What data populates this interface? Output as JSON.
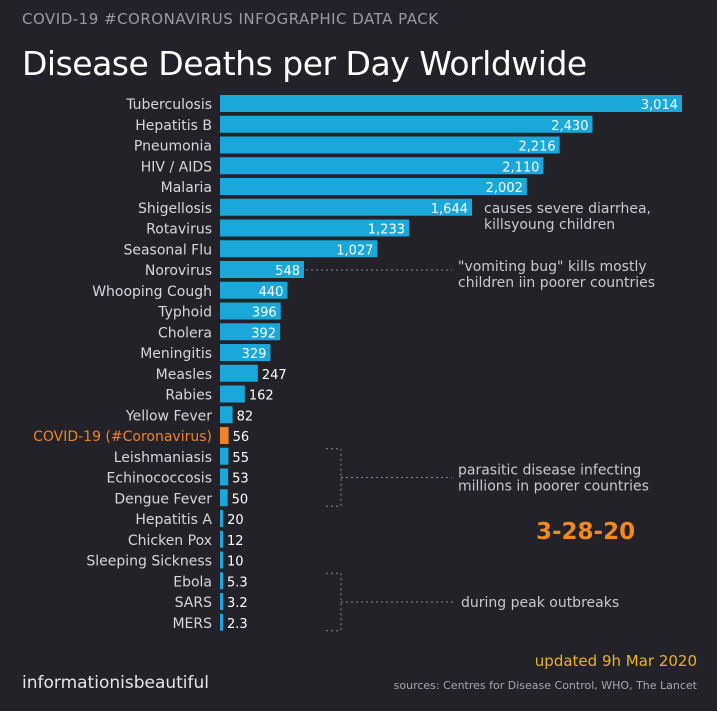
{
  "header": {
    "tag": "COVID-19 #CORONAVIRUS INFOGRAPHIC DATA PACK",
    "title": "Disease Deaths per Day Worldwide"
  },
  "stamp": "3-28-20",
  "footer": {
    "brand": "informationisbeautiful",
    "updated": "updated 9h Mar 2020",
    "sources": "sources: Centres for Disease Control, WHO, The Lancet"
  },
  "colors": {
    "bar": "#1aa7d9",
    "highlight": "#f0832a",
    "background": "#232229"
  },
  "chart_data": {
    "type": "bar",
    "orientation": "horizontal",
    "title": "Disease Deaths per Day Worldwide",
    "categories": [
      "Tuberculosis",
      "Hepatitis B",
      "Pneumonia",
      "HIV / AIDS",
      "Malaria",
      "Shigellosis",
      "Rotavirus",
      "Seasonal Flu",
      "Norovirus",
      "Whooping Cough",
      "Typhoid",
      "Cholera",
      "Meningitis",
      "Measles",
      "Rabies",
      "Yellow Fever",
      "COVID-19 (#Coronavirus)",
      "Leishmaniasis",
      "Echinococcosis",
      "Dengue Fever",
      "Hepatitis A",
      "Chicken Pox",
      "Sleeping Sickness",
      "Ebola",
      "SARS",
      "MERS"
    ],
    "values": [
      3014,
      2430,
      2216,
      2110,
      2002,
      1644,
      1233,
      1027,
      548,
      440,
      396,
      392,
      329,
      247,
      162,
      82,
      56,
      55,
      53,
      50,
      20,
      12,
      10,
      5.3,
      3.2,
      2.3
    ],
    "value_labels": [
      "3,014",
      "2,430",
      "2,216",
      "2,110",
      "2,002",
      "1,644",
      "1,233",
      "1,027",
      "548",
      "440",
      "396",
      "392",
      "329",
      "247",
      "162",
      "82",
      "56",
      "55",
      "53",
      "50",
      "20",
      "12",
      "10",
      "5.3",
      "3.2",
      "2.3"
    ],
    "highlight": "COVID-19 (#Coronavirus)",
    "annotations": [
      {
        "rows": [
          5,
          6
        ],
        "lines": [
          "causes severe diarrhea,",
          "killsyoung children"
        ]
      },
      {
        "rows": [
          8
        ],
        "lines": [
          "\"vomiting bug\" kills mostly",
          "children iin poorer countries"
        ]
      },
      {
        "rows": [
          17,
          18,
          19
        ],
        "lines": [
          "parasitic disease infecting",
          "millions in poorer countries"
        ]
      },
      {
        "rows": [
          23,
          24,
          25
        ],
        "lines": [
          "during peak outbreaks"
        ]
      }
    ]
  }
}
